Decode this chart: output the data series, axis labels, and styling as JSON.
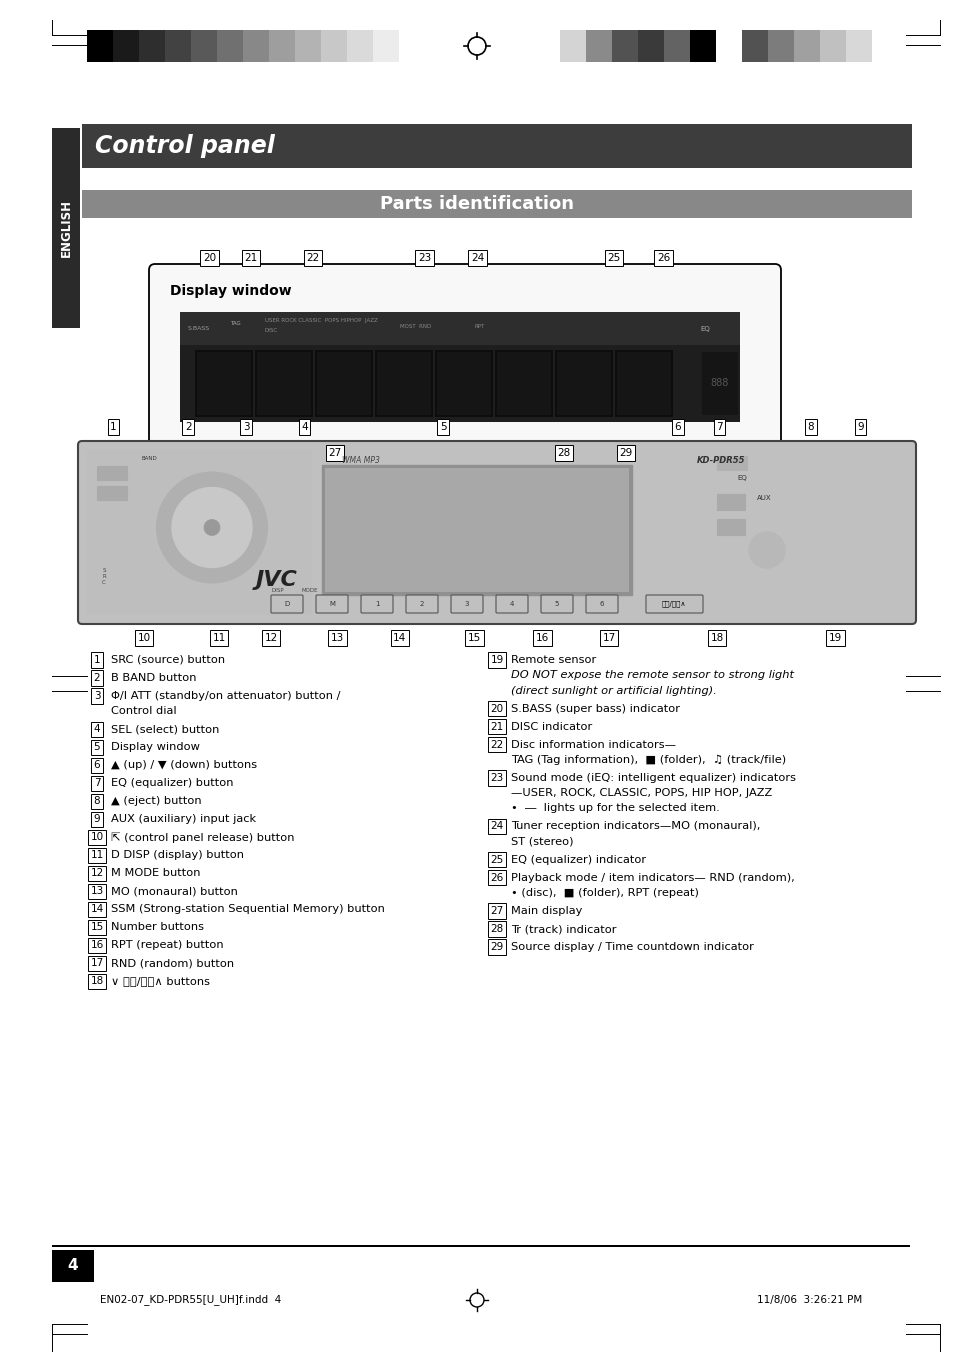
{
  "title": "Control panel",
  "subtitle": "Parts identification",
  "bg_color": "#ffffff",
  "header_bg": "#3d3d3d",
  "sidebar_bg": "#2a2a2a",
  "sidebar_text": "ENGLISH",
  "parts_bg": "#888888",
  "page_number": "4",
  "footer_left": "EN02-07_KD-PDR55[U_UH]f.indd  4",
  "footer_right": "11/8/06  3:26:21 PM",
  "display_label": "Display window",
  "bar_colors_left": [
    "#000000",
    "#1a1a1a",
    "#2e2e2e",
    "#424242",
    "#595959",
    "#707070",
    "#888888",
    "#9e9e9e",
    "#b3b3b3",
    "#c8c8c8",
    "#dadada",
    "#ececec",
    "#ffffff"
  ],
  "bar_colors_right": [
    "#d4d4d4",
    "#8a8a8a",
    "#525252",
    "#3a3a3a",
    "#636363",
    "#000000",
    "#ffffff",
    "#525252",
    "#7c7c7c",
    "#a0a0a0",
    "#c0c0c0",
    "#d8d8d8"
  ],
  "left_items": [
    {
      "num": "1",
      "text": "SRC (source) button",
      "extra": ""
    },
    {
      "num": "2",
      "text": "B BAND button",
      "extra": ""
    },
    {
      "num": "3",
      "text": "Φ/I ATT (standby/on attenuator) button /",
      "extra": "Control dial"
    },
    {
      "num": "4",
      "text": "SEL (select) button",
      "extra": ""
    },
    {
      "num": "5",
      "text": "Display window",
      "extra": ""
    },
    {
      "num": "6",
      "text": "▲ (up) / ▼ (down) buttons",
      "extra": ""
    },
    {
      "num": "7",
      "text": "EQ (equalizer) button",
      "extra": ""
    },
    {
      "num": "8",
      "text": "▲ (eject) button",
      "extra": ""
    },
    {
      "num": "9",
      "text": "AUX (auxiliary) input jack",
      "extra": ""
    },
    {
      "num": "10",
      "text": "⇱ (control panel release) button",
      "extra": ""
    },
    {
      "num": "11",
      "text": "D DISP (display) button",
      "extra": ""
    },
    {
      "num": "12",
      "text": "M MODE button",
      "extra": ""
    },
    {
      "num": "13",
      "text": "MO (monaural) button",
      "extra": ""
    },
    {
      "num": "14",
      "text": "SSM (Strong-station Sequential Memory) button",
      "extra": ""
    },
    {
      "num": "15",
      "text": "Number buttons",
      "extra": ""
    },
    {
      "num": "16",
      "text": "RPT (repeat) button",
      "extra": ""
    },
    {
      "num": "17",
      "text": "RND (random) button",
      "extra": ""
    },
    {
      "num": "18",
      "text": "∨ ⏪⏪/⏩⏩∧ buttons",
      "extra": ""
    }
  ],
  "right_items": [
    {
      "num": "19",
      "text": "Remote sensor",
      "extra": "DO NOT expose the remote sensor to strong light\n(direct sunlight or artificial lighting).",
      "italic_extra": true
    },
    {
      "num": "20",
      "text": "S.BASS (super bass) indicator",
      "extra": ""
    },
    {
      "num": "21",
      "text": "DISC indicator",
      "extra": ""
    },
    {
      "num": "22",
      "text": "Disc information indicators—",
      "extra": "TAG (Tag information),  ■ (folder),  ♫ (track/file)"
    },
    {
      "num": "23",
      "text": "Sound mode (iEQ: intelligent equalizer) indicators",
      "extra": "—USER, ROCK, CLASSIC, POPS, HIP HOP, JAZZ\n•  ―  lights up for the selected item."
    },
    {
      "num": "24",
      "text": "Tuner reception indicators—MO (monaural),",
      "extra": "ST (stereo)"
    },
    {
      "num": "25",
      "text": "EQ (equalizer) indicator",
      "extra": ""
    },
    {
      "num": "26",
      "text": "Playback mode / item indicators— RND (random),",
      "extra": "• (disc),  ■ (folder), RPT (repeat)"
    },
    {
      "num": "27",
      "text": "Main display",
      "extra": ""
    },
    {
      "num": "28",
      "text": "Tr (track) indicator",
      "extra": ""
    },
    {
      "num": "29",
      "text": "Source display / Time countdown indicator",
      "extra": ""
    }
  ],
  "device_nums_top": [
    [
      "1",
      0.038
    ],
    [
      "2",
      0.128
    ],
    [
      "3",
      0.198
    ],
    [
      "4",
      0.268
    ],
    [
      "5",
      0.435
    ],
    [
      "6",
      0.718
    ],
    [
      "7",
      0.768
    ],
    [
      "8",
      0.878
    ],
    [
      "9",
      0.938
    ]
  ],
  "device_nums_bot": [
    [
      "10",
      0.075
    ],
    [
      "11",
      0.165
    ],
    [
      "12",
      0.228
    ],
    [
      "13",
      0.308
    ],
    [
      "14",
      0.383
    ],
    [
      "15",
      0.473
    ],
    [
      "16",
      0.555
    ],
    [
      "17",
      0.635
    ],
    [
      "18",
      0.765
    ],
    [
      "19",
      0.908
    ]
  ],
  "disp_nums_above": [
    [
      "20",
      0.088
    ],
    [
      "21",
      0.155
    ],
    [
      "22",
      0.255
    ],
    [
      "23",
      0.435
    ],
    [
      "24",
      0.52
    ],
    [
      "25",
      0.74
    ],
    [
      "26",
      0.82
    ]
  ],
  "disp_nums_below": [
    [
      "27",
      0.29
    ],
    [
      "28",
      0.66
    ],
    [
      "29",
      0.76
    ]
  ]
}
